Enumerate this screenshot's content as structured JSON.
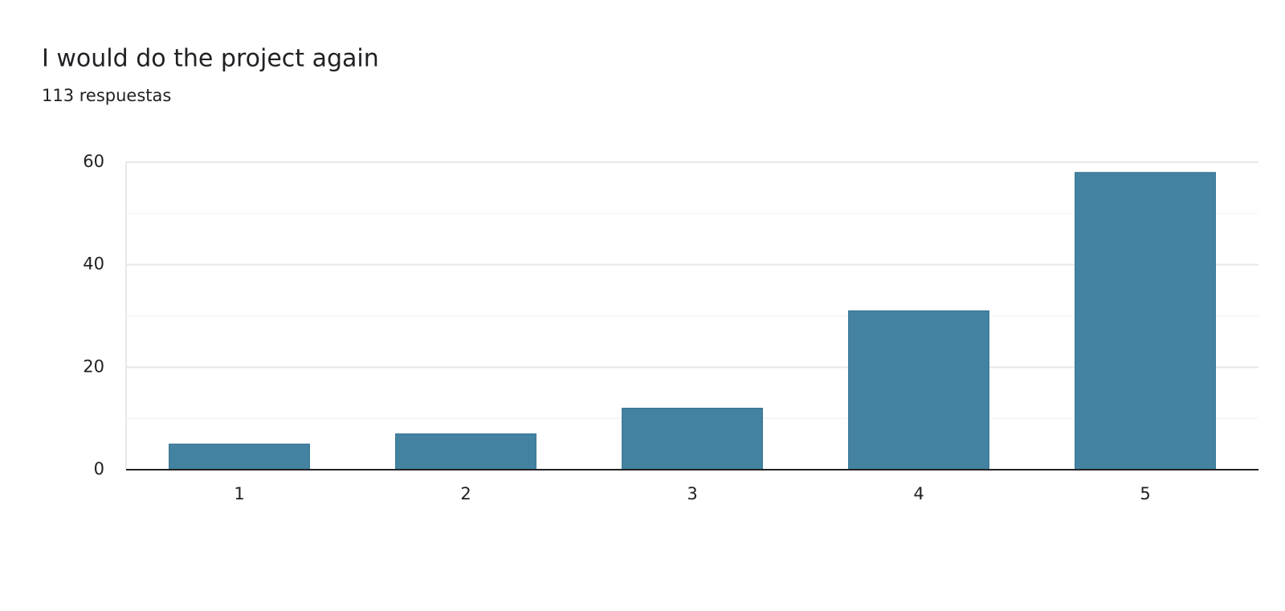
{
  "chart_data": {
    "type": "bar",
    "title": "I would do the project again",
    "subtitle": "113 respuestas",
    "categories": [
      "1",
      "2",
      "3",
      "4",
      "5"
    ],
    "values": [
      5,
      7,
      12,
      31,
      58
    ],
    "color": "#4383a1",
    "ylim": [
      0,
      60
    ],
    "yticks": [
      0,
      20,
      40,
      60
    ],
    "minor_yticks": [
      10,
      30,
      50
    ],
    "grid": true
  }
}
